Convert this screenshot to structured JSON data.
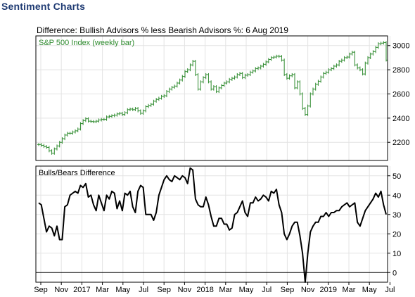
{
  "page": {
    "title": "Sentiment Charts"
  },
  "chart_data": {
    "type": "line",
    "title": "Difference: Bullish Advisors % less Bearish Advisors %: 6 Aug 2019",
    "x_tick_labels": [
      "Sep",
      "Nov",
      "2017",
      "Mar",
      "May",
      "Jul",
      "Sep",
      "Nov",
      "2018",
      "Mar",
      "May",
      "Jul",
      "Sep",
      "Nov",
      "2019",
      "Mar",
      "May",
      "Jul"
    ],
    "colors": {
      "price": "#2e8b2e",
      "line": "#000000",
      "title": "#1f3b73",
      "grid": "#e3e3e3"
    },
    "panels": [
      {
        "name": "price",
        "label": "S&P 500 Index (weekly bar)",
        "type": "ohlc-bar",
        "ylim": [
          2050,
          3080
        ],
        "yticks": [
          2200,
          2400,
          2600,
          2800,
          3000
        ],
        "series": [
          {
            "values": [
              2182,
              2175,
              2165,
              2158,
              2130,
              2110,
              2145,
              2170,
              2200,
              2230,
              2260,
              2275,
              2275,
              2285,
              2295,
              2310,
              2355,
              2380,
              2395,
              2375,
              2372,
              2370,
              2375,
              2385,
              2390,
              2390,
              2410,
              2415,
              2420,
              2425,
              2435,
              2440,
              2430,
              2445,
              2470,
              2475,
              2470,
              2480,
              2460,
              2440,
              2460,
              2495,
              2505,
              2515,
              2540,
              2555,
              2565,
              2580,
              2585,
              2620,
              2640,
              2655,
              2665,
              2690,
              2715,
              2745,
              2785,
              2800,
              2840,
              2870,
              2760,
              2640,
              2700,
              2735,
              2760,
              2700,
              2640,
              2660,
              2620,
              2650,
              2670,
              2690,
              2700,
              2720,
              2730,
              2740,
              2760,
              2770,
              2735,
              2755,
              2760,
              2780,
              2790,
              2810,
              2815,
              2830,
              2845,
              2865,
              2885,
              2900,
              2905,
              2912,
              2910,
              2880,
              2760,
              2730,
              2750,
              2760,
              2650,
              2700,
              2600,
              2480,
              2430,
              2500,
              2600,
              2640,
              2680,
              2705,
              2740,
              2770,
              2780,
              2800,
              2810,
              2830,
              2840,
              2870,
              2880,
              2900,
              2905,
              2930,
              2945,
              2840,
              2815,
              2800,
              2765,
              2855,
              2900,
              2930,
              2950,
              2985,
              3015,
              3020,
              3025,
              2880
            ]
          }
        ]
      },
      {
        "name": "difference",
        "label": "Bulls/Bears Difference",
        "type": "line",
        "ylim": [
          -5,
          55
        ],
        "yticks": [
          0,
          10,
          20,
          30,
          40,
          50
        ],
        "series": [
          {
            "values": [
              36,
              35,
              28,
              21,
              24,
              23,
              19,
              24,
              17,
              17,
              34,
              35,
              40,
              41,
              42,
              41,
              45,
              44,
              46,
              39,
              40,
              35,
              32,
              40,
              36,
              32,
              40,
              38,
              42,
              41,
              33,
              37,
              32,
              41,
              40,
              42,
              34,
              31,
              42,
              45,
              44,
              30,
              30,
              30,
              27,
              31,
              40,
              44,
              48,
              50,
              48,
              47,
              50,
              49,
              48,
              50,
              49,
              46,
              54,
              53,
              38,
              35,
              34,
              34,
              39,
              35,
              29,
              24,
              24,
              28,
              28,
              25,
              25,
              22,
              23,
              30,
              31,
              34,
              37,
              31,
              29,
              36,
              36,
              39,
              37,
              38,
              40,
              39,
              37,
              42,
              41,
              43,
              35,
              31,
              20,
              17,
              20,
              24,
              26,
              26,
              19,
              10,
              -5,
              10,
              21,
              24,
              26,
              26,
              29,
              29,
              31,
              29,
              31,
              31,
              32,
              32,
              34,
              35,
              36,
              34,
              35,
              36,
              26,
              24,
              28,
              32,
              34,
              36,
              38,
              41,
              39,
              42,
              35,
              30
            ]
          }
        ]
      }
    ]
  }
}
